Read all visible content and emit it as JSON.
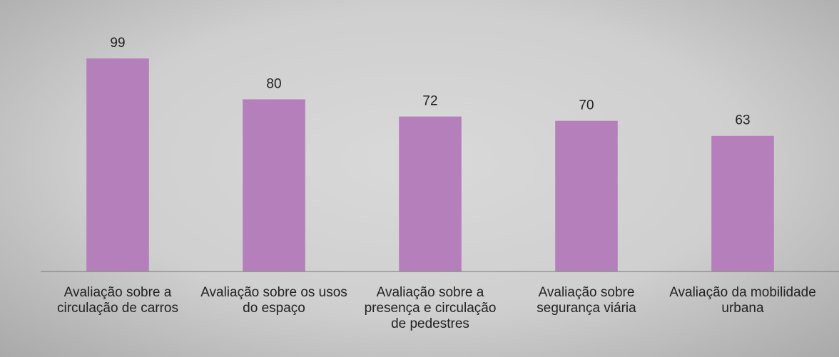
{
  "chart_data": {
    "type": "bar",
    "categories": [
      "Avaliação sobre a circulação de carros",
      "Avaliação sobre os usos do espaço",
      "Avaliação sobre a presença e circulação de pedestres",
      "Avaliação sobre segurança viária",
      "Avaliação da mobilidade urbana"
    ],
    "values": [
      99,
      80,
      72,
      70,
      63
    ],
    "color": "#b57fbb",
    "ylim": [
      0,
      125
    ]
  }
}
